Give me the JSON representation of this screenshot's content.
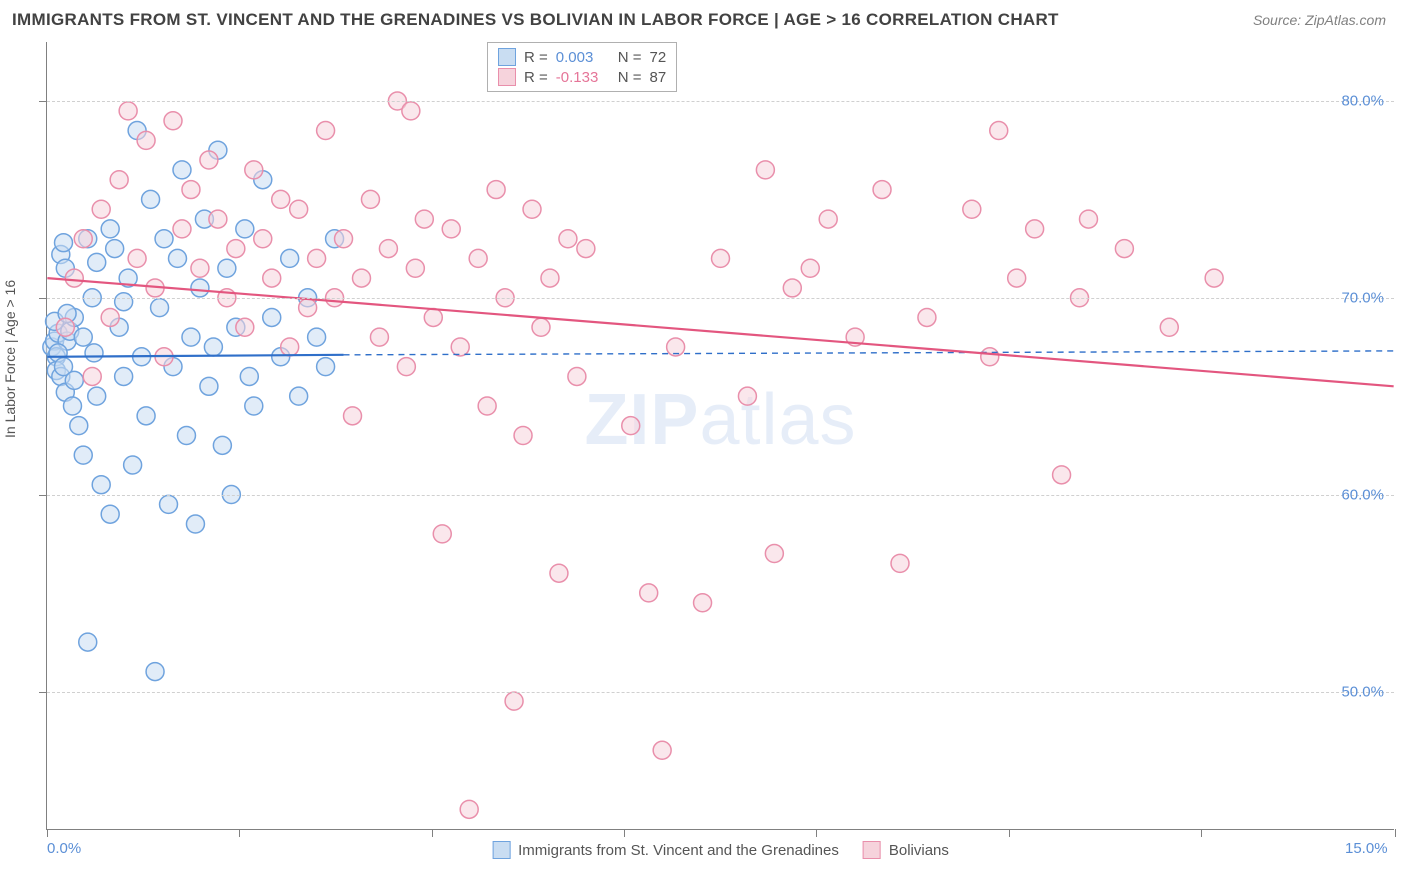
{
  "title": "IMMIGRANTS FROM ST. VINCENT AND THE GRENADINES VS BOLIVIAN IN LABOR FORCE | AGE > 16 CORRELATION CHART",
  "source": "Source: ZipAtlas.com",
  "y_axis_label": "In Labor Force | Age > 16",
  "watermark_bold": "ZIP",
  "watermark_light": "atlas",
  "chart": {
    "type": "scatter",
    "xlim": [
      0,
      15
    ],
    "ylim": [
      43,
      83
    ],
    "x_ticks": [
      0,
      2.14,
      4.28,
      6.42,
      8.56,
      10.7,
      12.84,
      15
    ],
    "x_tick_labels_shown": {
      "0": "0.0%",
      "15": "15.0%"
    },
    "y_gridlines": [
      50,
      60,
      70,
      80
    ],
    "y_tick_labels": {
      "50": "50.0%",
      "60": "60.0%",
      "70": "70.0%",
      "80": "80.0%"
    },
    "background_color": "#ffffff",
    "grid_color": "#d0d0d0",
    "marker_radius": 9,
    "marker_stroke_width": 1.5,
    "series": [
      {
        "name": "Immigrants from St. Vincent and the Grenadines",
        "fill": "#c9ddf2",
        "stroke": "#6fa3de",
        "fill_opacity": 0.55,
        "R": "0.003",
        "N": "72",
        "regression": {
          "x1": 0,
          "y1": 67.0,
          "x2": 3.3,
          "y2": 67.1,
          "color": "#2f6fc9",
          "width": 2.2
        },
        "extrapolation": {
          "x1": 3.3,
          "y1": 67.1,
          "x2": 15,
          "y2": 67.3,
          "color": "#2f6fc9",
          "dash": "6,5",
          "width": 1.4
        },
        "points": [
          [
            0.05,
            67.5
          ],
          [
            0.08,
            67.8
          ],
          [
            0.1,
            67.0
          ],
          [
            0.12,
            68.2
          ],
          [
            0.1,
            66.3
          ],
          [
            0.15,
            72.2
          ],
          [
            0.18,
            72.8
          ],
          [
            0.2,
            71.5
          ],
          [
            0.15,
            66.0
          ],
          [
            0.2,
            65.2
          ],
          [
            0.22,
            67.8
          ],
          [
            0.25,
            68.3
          ],
          [
            0.3,
            69.0
          ],
          [
            0.28,
            64.5
          ],
          [
            0.35,
            63.5
          ],
          [
            0.4,
            62.0
          ],
          [
            0.45,
            73.0
          ],
          [
            0.5,
            70.0
          ],
          [
            0.52,
            67.2
          ],
          [
            0.55,
            65.0
          ],
          [
            0.6,
            60.5
          ],
          [
            0.7,
            59.0
          ],
          [
            0.75,
            72.5
          ],
          [
            0.8,
            68.5
          ],
          [
            0.85,
            66.0
          ],
          [
            0.9,
            71.0
          ],
          [
            0.95,
            61.5
          ],
          [
            1.0,
            78.5
          ],
          [
            1.05,
            67.0
          ],
          [
            1.1,
            64.0
          ],
          [
            1.15,
            75.0
          ],
          [
            1.2,
            51.0
          ],
          [
            1.25,
            69.5
          ],
          [
            1.3,
            73.0
          ],
          [
            1.35,
            59.5
          ],
          [
            1.4,
            66.5
          ],
          [
            1.45,
            72.0
          ],
          [
            1.5,
            76.5
          ],
          [
            1.55,
            63.0
          ],
          [
            1.6,
            68.0
          ],
          [
            1.65,
            58.5
          ],
          [
            1.7,
            70.5
          ],
          [
            1.75,
            74.0
          ],
          [
            1.8,
            65.5
          ],
          [
            1.85,
            67.5
          ],
          [
            1.9,
            77.5
          ],
          [
            1.95,
            62.5
          ],
          [
            2.0,
            71.5
          ],
          [
            2.05,
            60.0
          ],
          [
            2.1,
            68.5
          ],
          [
            2.2,
            73.5
          ],
          [
            2.25,
            66.0
          ],
          [
            2.3,
            64.5
          ],
          [
            2.4,
            76.0
          ],
          [
            2.5,
            69.0
          ],
          [
            2.6,
            67.0
          ],
          [
            2.7,
            72.0
          ],
          [
            2.8,
            65.0
          ],
          [
            2.9,
            70.0
          ],
          [
            3.0,
            68.0
          ],
          [
            3.1,
            66.5
          ],
          [
            3.2,
            73.0
          ],
          [
            0.45,
            52.5
          ],
          [
            0.08,
            68.8
          ],
          [
            0.12,
            67.2
          ],
          [
            0.18,
            66.5
          ],
          [
            0.22,
            69.2
          ],
          [
            0.3,
            65.8
          ],
          [
            0.4,
            68.0
          ],
          [
            0.55,
            71.8
          ],
          [
            0.7,
            73.5
          ],
          [
            0.85,
            69.8
          ]
        ]
      },
      {
        "name": "Bolivians",
        "fill": "#f6d3dc",
        "stroke": "#e98fab",
        "fill_opacity": 0.55,
        "R": "-0.133",
        "N": "87",
        "regression": {
          "x1": 0,
          "y1": 71.0,
          "x2": 15,
          "y2": 65.5,
          "color": "#e3567f",
          "width": 2.2
        },
        "points": [
          [
            0.2,
            68.5
          ],
          [
            0.3,
            71.0
          ],
          [
            0.4,
            73.0
          ],
          [
            0.5,
            66.0
          ],
          [
            0.6,
            74.5
          ],
          [
            0.7,
            69.0
          ],
          [
            0.8,
            76.0
          ],
          [
            0.9,
            79.5
          ],
          [
            1.0,
            72.0
          ],
          [
            1.1,
            78.0
          ],
          [
            1.2,
            70.5
          ],
          [
            1.3,
            67.0
          ],
          [
            1.4,
            79.0
          ],
          [
            1.5,
            73.5
          ],
          [
            1.6,
            75.5
          ],
          [
            1.7,
            71.5
          ],
          [
            1.8,
            77.0
          ],
          [
            1.9,
            74.0
          ],
          [
            2.0,
            70.0
          ],
          [
            2.1,
            72.5
          ],
          [
            2.2,
            68.5
          ],
          [
            2.3,
            76.5
          ],
          [
            2.4,
            73.0
          ],
          [
            2.5,
            71.0
          ],
          [
            2.6,
            75.0
          ],
          [
            2.7,
            67.5
          ],
          [
            2.8,
            74.5
          ],
          [
            2.9,
            69.5
          ],
          [
            3.0,
            72.0
          ],
          [
            3.1,
            78.5
          ],
          [
            3.2,
            70.0
          ],
          [
            3.3,
            73.0
          ],
          [
            3.4,
            64.0
          ],
          [
            3.5,
            71.0
          ],
          [
            3.6,
            75.0
          ],
          [
            3.7,
            68.0
          ],
          [
            3.8,
            72.5
          ],
          [
            3.9,
            80.0
          ],
          [
            4.0,
            66.5
          ],
          [
            4.05,
            79.5
          ],
          [
            4.1,
            71.5
          ],
          [
            4.2,
            74.0
          ],
          [
            4.3,
            69.0
          ],
          [
            4.4,
            58.0
          ],
          [
            4.5,
            73.5
          ],
          [
            4.6,
            67.5
          ],
          [
            4.7,
            44.0
          ],
          [
            4.8,
            72.0
          ],
          [
            4.9,
            64.5
          ],
          [
            5.0,
            75.5
          ],
          [
            5.1,
            70.0
          ],
          [
            5.2,
            49.5
          ],
          [
            5.3,
            63.0
          ],
          [
            5.4,
            74.5
          ],
          [
            5.5,
            68.5
          ],
          [
            5.6,
            71.0
          ],
          [
            5.7,
            56.0
          ],
          [
            5.8,
            73.0
          ],
          [
            5.9,
            66.0
          ],
          [
            6.0,
            72.5
          ],
          [
            6.5,
            63.5
          ],
          [
            6.7,
            55.0
          ],
          [
            6.85,
            47.0
          ],
          [
            7.0,
            67.5
          ],
          [
            7.3,
            54.5
          ],
          [
            7.5,
            72.0
          ],
          [
            7.8,
            65.0
          ],
          [
            8.0,
            76.5
          ],
          [
            8.1,
            57.0
          ],
          [
            8.3,
            70.5
          ],
          [
            8.5,
            71.5
          ],
          [
            8.7,
            74.0
          ],
          [
            9.0,
            68.0
          ],
          [
            9.3,
            75.5
          ],
          [
            9.5,
            56.5
          ],
          [
            9.8,
            69.0
          ],
          [
            10.3,
            74.5
          ],
          [
            10.5,
            67.0
          ],
          [
            10.6,
            78.5
          ],
          [
            10.8,
            71.0
          ],
          [
            11.0,
            73.5
          ],
          [
            11.3,
            61.0
          ],
          [
            11.5,
            70.0
          ],
          [
            11.6,
            74.0
          ],
          [
            12.0,
            72.5
          ],
          [
            12.5,
            68.5
          ],
          [
            13.0,
            71.0
          ]
        ]
      }
    ]
  },
  "legend_bottom": [
    {
      "swatch_fill": "#c9ddf2",
      "swatch_stroke": "#6fa3de",
      "label": "Immigrants from St. Vincent and the Grenadines"
    },
    {
      "swatch_fill": "#f6d3dc",
      "swatch_stroke": "#e98fab",
      "label": "Bolivians"
    }
  ]
}
